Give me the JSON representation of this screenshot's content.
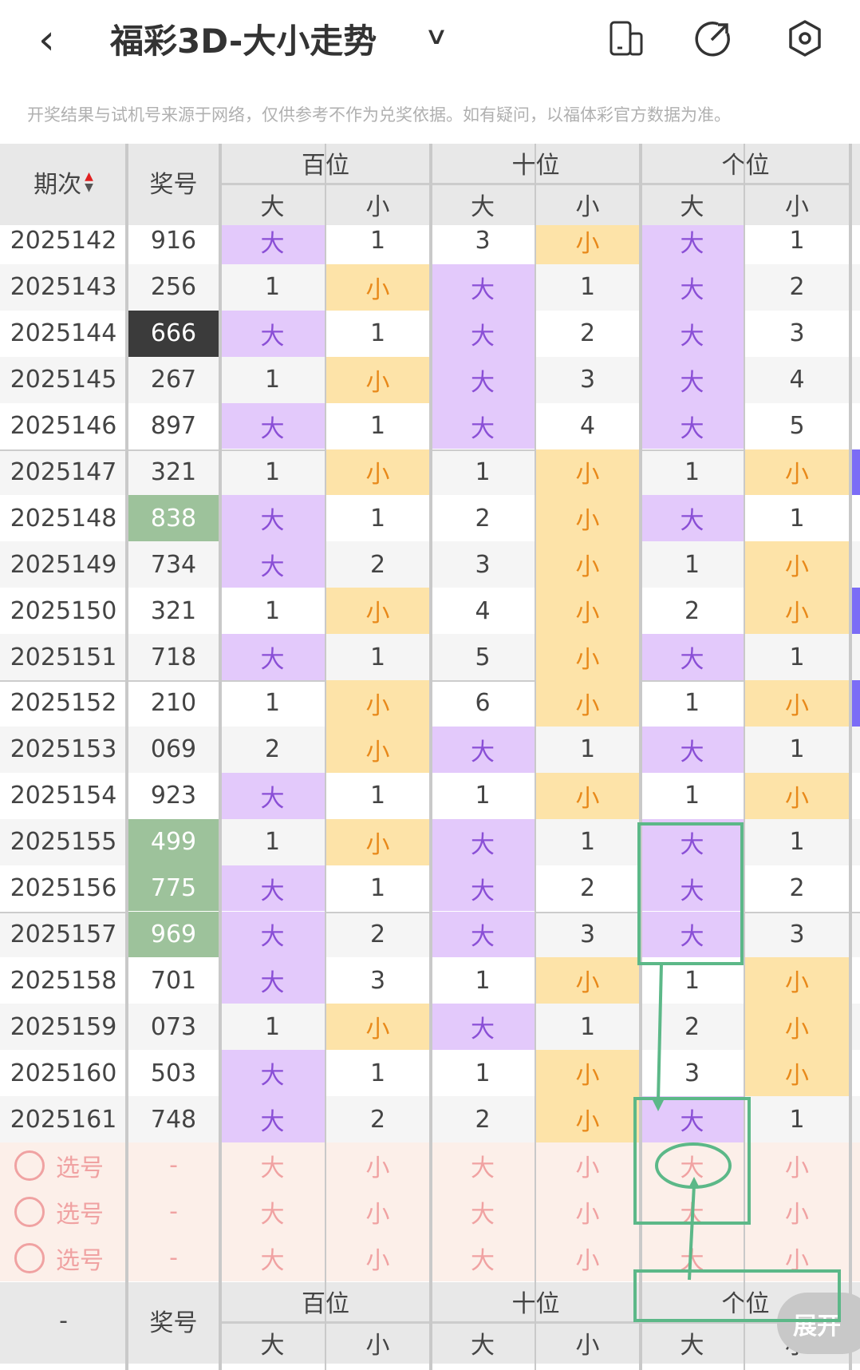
{
  "header": {
    "title": "福彩3D-大小走势",
    "back_icon": "chevron-left-icon",
    "dropdown_icon": "chevron-down-icon",
    "icons": [
      "device-switch-icon",
      "share-icon",
      "settings-icon"
    ]
  },
  "notice": "开奖结果与试机号来源于网络，仅供参考不作为兑奖依据。如有疑问，以福体彩官方数据为准。",
  "table": {
    "col_period": "期次",
    "col_number": "奖号",
    "groups": [
      "百位",
      "十位",
      "个位"
    ],
    "sub": [
      "大",
      "小"
    ],
    "rows": [
      [
        "2025142",
        "916",
        "大",
        "1",
        "3",
        "小",
        "大",
        "1"
      ],
      [
        "2025143",
        "256",
        "1",
        "小",
        "大",
        "1",
        "大",
        "2"
      ],
      [
        "2025144",
        "666",
        "大",
        "1",
        "大",
        "2",
        "大",
        "3"
      ],
      [
        "2025145",
        "267",
        "1",
        "小",
        "大",
        "3",
        "大",
        "4"
      ],
      [
        "2025146",
        "897",
        "大",
        "1",
        "大",
        "4",
        "大",
        "5"
      ],
      [
        "2025147",
        "321",
        "1",
        "小",
        "1",
        "小",
        "1",
        "小"
      ],
      [
        "2025148",
        "838",
        "大",
        "1",
        "2",
        "小",
        "大",
        "1"
      ],
      [
        "2025149",
        "734",
        "大",
        "2",
        "3",
        "小",
        "1",
        "小"
      ],
      [
        "2025150",
        "321",
        "1",
        "小",
        "4",
        "小",
        "2",
        "小"
      ],
      [
        "2025151",
        "718",
        "大",
        "1",
        "5",
        "小",
        "大",
        "1"
      ],
      [
        "2025152",
        "210",
        "1",
        "小",
        "6",
        "小",
        "1",
        "小"
      ],
      [
        "2025153",
        "069",
        "2",
        "小",
        "大",
        "1",
        "大",
        "1"
      ],
      [
        "2025154",
        "923",
        "大",
        "1",
        "1",
        "小",
        "1",
        "小"
      ],
      [
        "2025155",
        "499",
        "1",
        "小",
        "大",
        "1",
        "大",
        "1"
      ],
      [
        "2025156",
        "775",
        "大",
        "1",
        "大",
        "2",
        "大",
        "2"
      ],
      [
        "2025157",
        "969",
        "大",
        "2",
        "大",
        "3",
        "大",
        "3"
      ],
      [
        "2025158",
        "701",
        "大",
        "3",
        "1",
        "小",
        "1",
        "小"
      ],
      [
        "2025159",
        "073",
        "1",
        "小",
        "大",
        "1",
        "2",
        "小"
      ],
      [
        "2025160",
        "503",
        "大",
        "1",
        "1",
        "小",
        "3",
        "小"
      ],
      [
        "2025161",
        "748",
        "大",
        "2",
        "2",
        "小",
        "大",
        "1"
      ]
    ],
    "number_highlight": {
      "2025144": "dark",
      "2025148": "green",
      "2025155": "green",
      "2025156": "green",
      "2025157": "green"
    },
    "pick_rows": [
      {
        "label": "选号",
        "number": "-"
      },
      {
        "label": "选号",
        "number": "-"
      },
      {
        "label": "选号",
        "number": "-"
      }
    ],
    "footer_period": "-"
  },
  "expand_label": "展开",
  "colors": {
    "big_bg": "#e3c9fb",
    "big_text": "#8a4fd6",
    "small_bg": "#fde3a8",
    "small_text": "#e8891a",
    "green": "#9dc29b",
    "dark": "#3b3b3b",
    "pick_bg": "#fcefe9",
    "pick_text": "#f0a2a2",
    "annotation": "#5cb888"
  }
}
